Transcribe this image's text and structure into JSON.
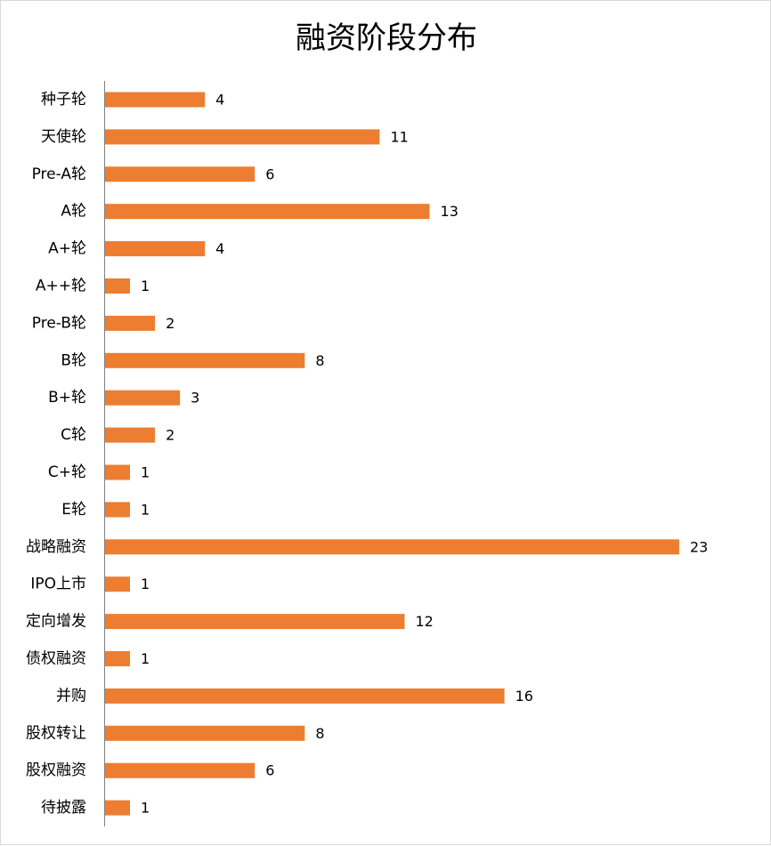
{
  "chart_data": {
    "type": "bar",
    "orientation": "horizontal",
    "title": "融资阶段分布",
    "xlabel": "",
    "ylabel": "",
    "categories": [
      "种子轮",
      "天使轮",
      "Pre-A轮",
      "A轮",
      "A+轮",
      "A++轮",
      "Pre-B轮",
      "B轮",
      "B+轮",
      "C轮",
      "C+轮",
      "E轮",
      "战略融资",
      "IPO上市",
      "定向增发",
      "债权融资",
      "并购",
      "股权转让",
      "股权融资",
      "待披露"
    ],
    "values": [
      4,
      11,
      6,
      13,
      4,
      1,
      2,
      8,
      3,
      2,
      1,
      1,
      23,
      1,
      12,
      1,
      16,
      8,
      6,
      1
    ],
    "xlim": [
      0,
      25
    ],
    "grid": false,
    "legend": "none",
    "data_labels": true,
    "bar_color": "#ED7D31",
    "axis_color": "#808080"
  }
}
